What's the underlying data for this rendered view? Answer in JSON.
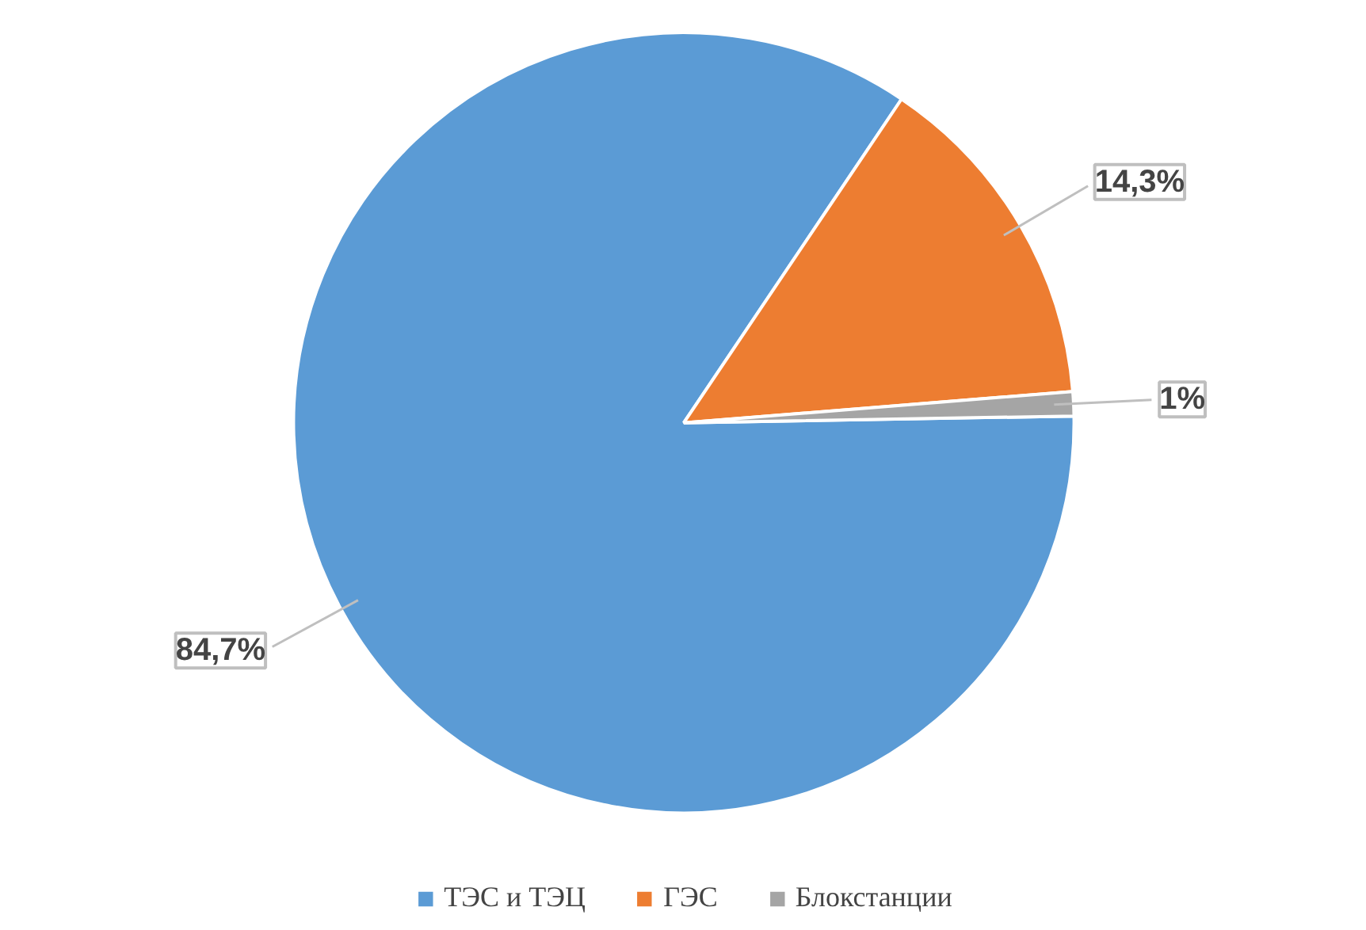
{
  "chart_data": {
    "type": "pie",
    "categories": [
      "ТЭС и ТЭЦ",
      "ГЭС",
      "Блокстанции"
    ],
    "values": [
      84.7,
      14.3,
      1
    ],
    "colors": [
      "#5b9bd5",
      "#ed7d31",
      "#a5a5a5"
    ],
    "value_labels": [
      "84,7%",
      "14,3%",
      "1%"
    ],
    "legend": "bottom"
  }
}
